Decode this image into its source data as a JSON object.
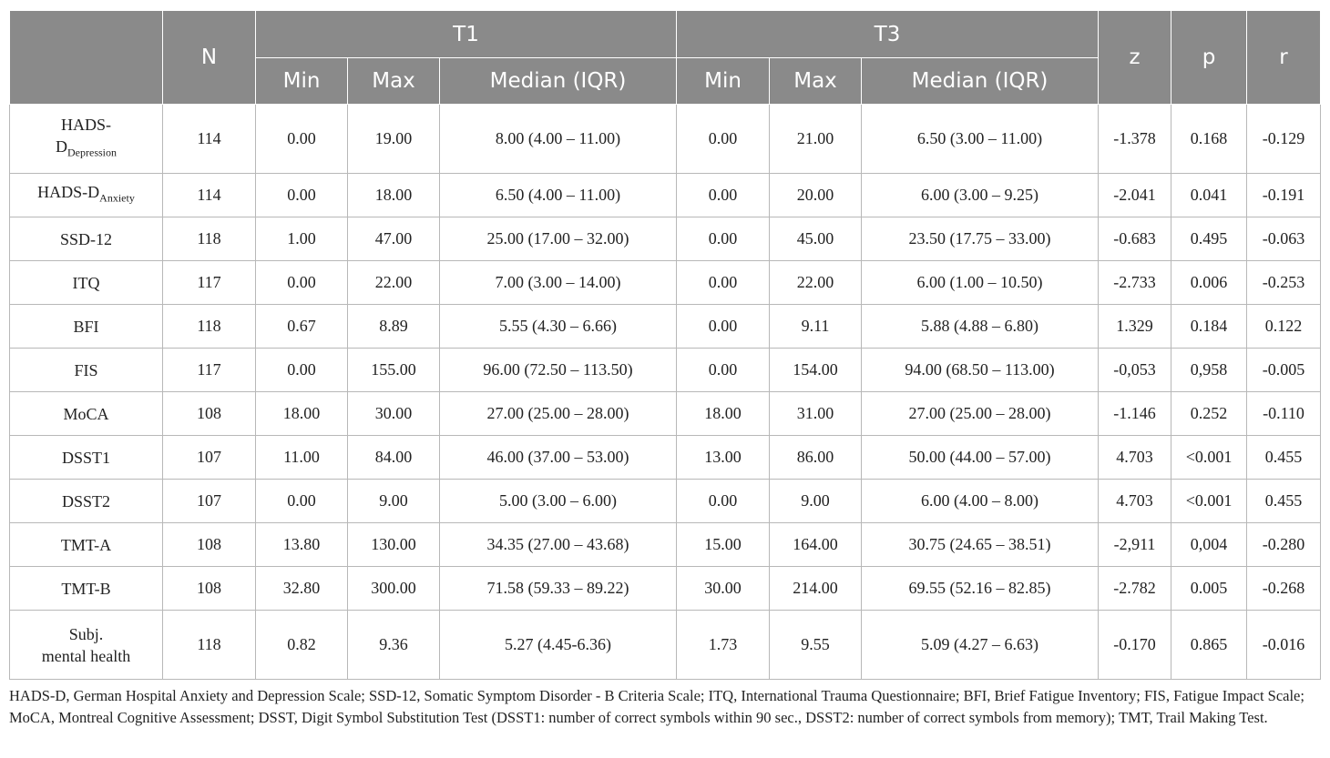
{
  "header": {
    "n": "N",
    "t1": "T1",
    "t3": "T3",
    "z": "z",
    "p": "p",
    "r": "r",
    "min": "Min",
    "max": "Max",
    "median": "Median (IQR)"
  },
  "rows": [
    {
      "label_main": "HADS-D",
      "label_sub": "Depression",
      "n": "114",
      "t1_min": "0.00",
      "t1_max": "19.00",
      "t1_median": "8.00 (4.00 – 11.00)",
      "t3_min": "0.00",
      "t3_max": "21.00",
      "t3_median": "6.50 (3.00 – 11.00)",
      "z": "-1.378",
      "p": "0.168",
      "r": "-0.129"
    },
    {
      "label_main": "HADS-D",
      "label_sub": "Anxiety",
      "n": "114",
      "t1_min": "0.00",
      "t1_max": "18.00",
      "t1_median": "6.50 (4.00 – 11.00)",
      "t3_min": "0.00",
      "t3_max": "20.00",
      "t3_median": "6.00 (3.00 – 9.25)",
      "z": "-2.041",
      "p": "0.041",
      "r": "-0.191"
    },
    {
      "label_main": "SSD-12",
      "label_sub": "",
      "n": "118",
      "t1_min": "1.00",
      "t1_max": "47.00",
      "t1_median": "25.00 (17.00 – 32.00)",
      "t3_min": "0.00",
      "t3_max": "45.00",
      "t3_median": "23.50 (17.75 – 33.00)",
      "z": "-0.683",
      "p": "0.495",
      "r": "-0.063"
    },
    {
      "label_main": "ITQ",
      "label_sub": "",
      "n": "117",
      "t1_min": "0.00",
      "t1_max": "22.00",
      "t1_median": "7.00 (3.00 – 14.00)",
      "t3_min": "0.00",
      "t3_max": "22.00",
      "t3_median": "6.00 (1.00 – 10.50)",
      "z": "-2.733",
      "p": "0.006",
      "r": "-0.253"
    },
    {
      "label_main": "BFI",
      "label_sub": "",
      "n": "118",
      "t1_min": "0.67",
      "t1_max": "8.89",
      "t1_median": "5.55 (4.30 – 6.66)",
      "t3_min": "0.00",
      "t3_max": "9.11",
      "t3_median": "5.88 (4.88 – 6.80)",
      "z": "1.329",
      "p": "0.184",
      "r": "0.122"
    },
    {
      "label_main": "FIS",
      "label_sub": "",
      "n": "117",
      "t1_min": "0.00",
      "t1_max": "155.00",
      "t1_median": "96.00 (72.50 – 113.50)",
      "t3_min": "0.00",
      "t3_max": "154.00",
      "t3_median": "94.00 (68.50 – 113.00)",
      "z": "-0,053",
      "p": "0,958",
      "r": "-0.005"
    },
    {
      "label_main": "MoCA",
      "label_sub": "",
      "n": "108",
      "t1_min": "18.00",
      "t1_max": "30.00",
      "t1_median": "27.00 (25.00 – 28.00)",
      "t3_min": "18.00",
      "t3_max": "31.00",
      "t3_median": "27.00 (25.00 – 28.00)",
      "z": "-1.146",
      "p": "0.252",
      "r": "-0.110"
    },
    {
      "label_main": "DSST1",
      "label_sub": "",
      "n": "107",
      "t1_min": "11.00",
      "t1_max": "84.00",
      "t1_median": "46.00 (37.00 – 53.00)",
      "t3_min": "13.00",
      "t3_max": "86.00",
      "t3_median": "50.00 (44.00 – 57.00)",
      "z": "4.703",
      "p": "<0.001",
      "r": "0.455"
    },
    {
      "label_main": "DSST2",
      "label_sub": "",
      "n": "107",
      "t1_min": "0.00",
      "t1_max": "9.00",
      "t1_median": "5.00 (3.00 – 6.00)",
      "t3_min": "0.00",
      "t3_max": "9.00",
      "t3_median": "6.00 (4.00 – 8.00)",
      "z": "4.703",
      "p": "<0.001",
      "r": "0.455"
    },
    {
      "label_main": "TMT-A",
      "label_sub": "",
      "n": "108",
      "t1_min": "13.80",
      "t1_max": "130.00",
      "t1_median": "34.35 (27.00 – 43.68)",
      "t3_min": "15.00",
      "t3_max": "164.00",
      "t3_median": "30.75 (24.65 – 38.51)",
      "z": "-2,911",
      "p": "0,004",
      "r": "-0.280"
    },
    {
      "label_main": "TMT-B",
      "label_sub": "",
      "n": "108",
      "t1_min": "32.80",
      "t1_max": "300.00",
      "t1_median": "71.58 (59.33 – 89.22)",
      "t3_min": "30.00",
      "t3_max": "214.00",
      "t3_median": "69.55 (52.16 – 82.85)",
      "z": "-2.782",
      "p": "0.005",
      "r": "-0.268"
    },
    {
      "label_main": "Subj.",
      "label_sub": "mental health",
      "n": "118",
      "t1_min": "0.82",
      "t1_max": "9.36",
      "t1_median": "5.27 (4.45-6.36)",
      "t3_min": "1.73",
      "t3_max": "9.55",
      "t3_median": "5.09 (4.27 – 6.63)",
      "z": "-0.170",
      "p": "0.865",
      "r": "-0.016"
    }
  ],
  "footnote": "HADS-D, German Hospital Anxiety and Depression Scale; SSD-12, Somatic Symptom Disorder - B Criteria Scale; ITQ, International Trauma Questionnaire; BFI, Brief Fatigue Inventory; FIS, Fatigue Impact Scale; MoCA, Montreal Cognitive Assessment; DSST, Digit Symbol Substitution Test (DSST1: number of correct symbols within 90 sec., DSST2: number of correct symbols from memory); TMT, Trail Making Test."
}
